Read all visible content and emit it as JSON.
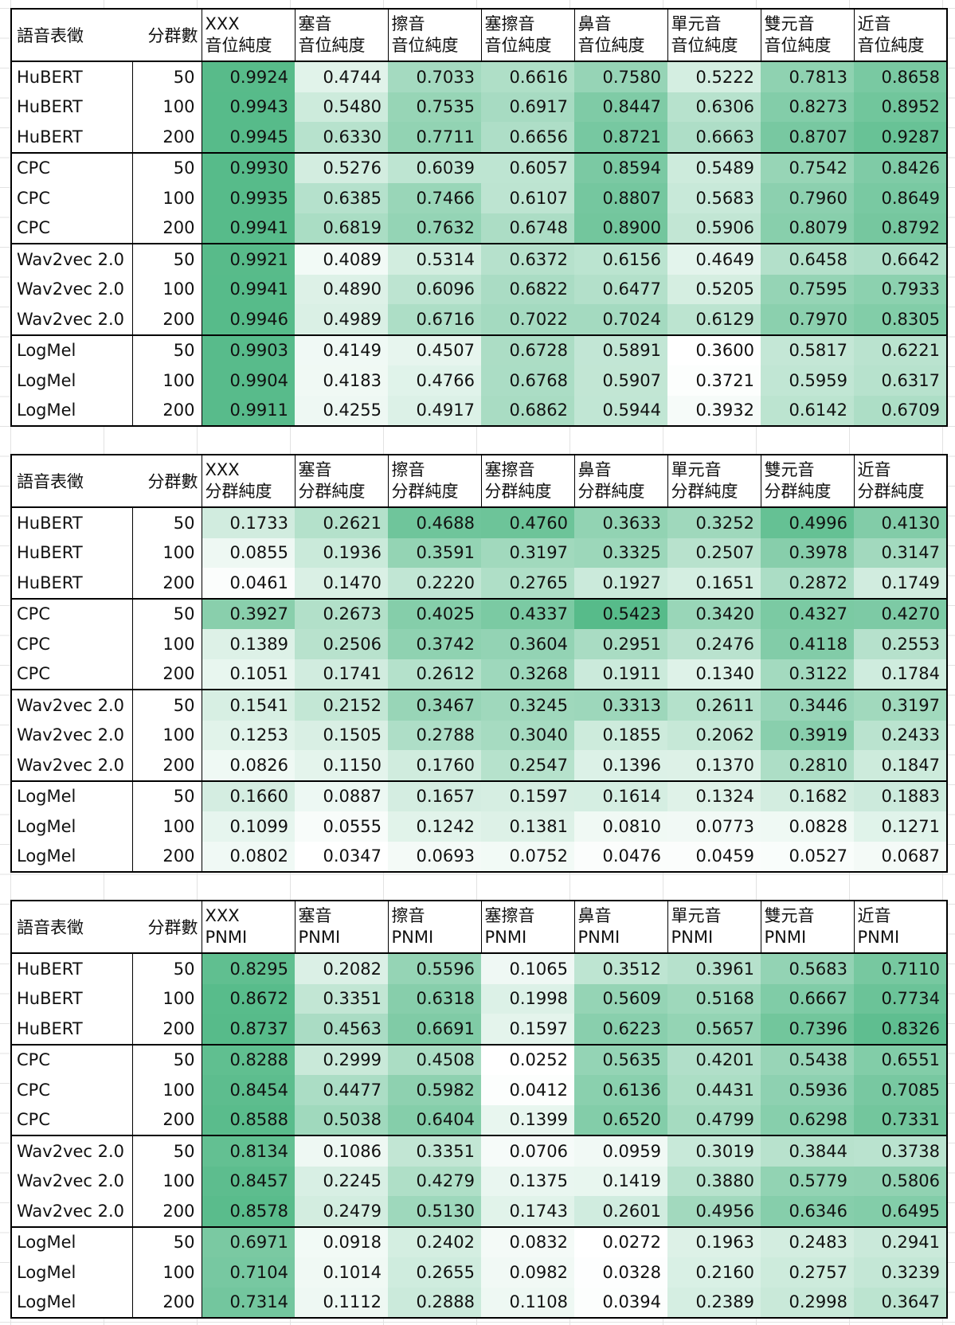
{
  "headers": {
    "representation": "語音表徵",
    "clusters": "分群數",
    "categories": [
      "XXX",
      "塞音",
      "擦音",
      "塞擦音",
      "鼻音",
      "單元音",
      "雙元音",
      "近音"
    ]
  },
  "tables": [
    {
      "metric": "音位純度",
      "rows": [
        {
          "name": "HuBERT",
          "k": "50",
          "values": [
            "0.9924",
            "0.4744",
            "0.7033",
            "0.6616",
            "0.7580",
            "0.5222",
            "0.7813",
            "0.8658"
          ]
        },
        {
          "name": "HuBERT",
          "k": "100",
          "values": [
            "0.9943",
            "0.5480",
            "0.7535",
            "0.6917",
            "0.8447",
            "0.6306",
            "0.8273",
            "0.8952"
          ]
        },
        {
          "name": "HuBERT",
          "k": "200",
          "values": [
            "0.9945",
            "0.6330",
            "0.7711",
            "0.6656",
            "0.8721",
            "0.6663",
            "0.8707",
            "0.9287"
          ]
        },
        {
          "name": "CPC",
          "k": "50",
          "values": [
            "0.9930",
            "0.5276",
            "0.6039",
            "0.6057",
            "0.8594",
            "0.5489",
            "0.7542",
            "0.8426"
          ]
        },
        {
          "name": "CPC",
          "k": "100",
          "values": [
            "0.9935",
            "0.6385",
            "0.7466",
            "0.6107",
            "0.8807",
            "0.5683",
            "0.7960",
            "0.8649"
          ]
        },
        {
          "name": "CPC",
          "k": "200",
          "values": [
            "0.9941",
            "0.6819",
            "0.7632",
            "0.6748",
            "0.8900",
            "0.5906",
            "0.8079",
            "0.8792"
          ]
        },
        {
          "name": "Wav2vec 2.0",
          "k": "50",
          "values": [
            "0.9921",
            "0.4089",
            "0.5314",
            "0.6372",
            "0.6156",
            "0.4649",
            "0.6458",
            "0.6642"
          ]
        },
        {
          "name": "Wav2vec 2.0",
          "k": "100",
          "values": [
            "0.9941",
            "0.4890",
            "0.6096",
            "0.6822",
            "0.6477",
            "0.5205",
            "0.7595",
            "0.7933"
          ]
        },
        {
          "name": "Wav2vec 2.0",
          "k": "200",
          "values": [
            "0.9946",
            "0.4989",
            "0.6716",
            "0.7022",
            "0.7024",
            "0.6129",
            "0.7970",
            "0.8305"
          ]
        },
        {
          "name": "LogMel",
          "k": "50",
          "values": [
            "0.9903",
            "0.4149",
            "0.4507",
            "0.6728",
            "0.5891",
            "0.3600",
            "0.5817",
            "0.6221"
          ]
        },
        {
          "name": "LogMel",
          "k": "100",
          "values": [
            "0.9904",
            "0.4183",
            "0.4766",
            "0.6768",
            "0.5907",
            "0.3721",
            "0.5959",
            "0.6317"
          ]
        },
        {
          "name": "LogMel",
          "k": "200",
          "values": [
            "0.9911",
            "0.4255",
            "0.4917",
            "0.6862",
            "0.5944",
            "0.3932",
            "0.6142",
            "0.6709"
          ]
        }
      ]
    },
    {
      "metric": "分群純度",
      "rows": [
        {
          "name": "HuBERT",
          "k": "50",
          "values": [
            "0.1733",
            "0.2621",
            "0.4688",
            "0.4760",
            "0.3633",
            "0.3252",
            "0.4996",
            "0.4130"
          ]
        },
        {
          "name": "HuBERT",
          "k": "100",
          "values": [
            "0.0855",
            "0.1936",
            "0.3591",
            "0.3197",
            "0.3325",
            "0.2507",
            "0.3978",
            "0.3147"
          ]
        },
        {
          "name": "HuBERT",
          "k": "200",
          "values": [
            "0.0461",
            "0.1470",
            "0.2220",
            "0.2765",
            "0.1927",
            "0.1651",
            "0.2872",
            "0.1749"
          ]
        },
        {
          "name": "CPC",
          "k": "50",
          "values": [
            "0.3927",
            "0.2673",
            "0.4025",
            "0.4337",
            "0.5423",
            "0.3420",
            "0.4327",
            "0.4270"
          ]
        },
        {
          "name": "CPC",
          "k": "100",
          "values": [
            "0.1389",
            "0.2506",
            "0.3742",
            "0.3604",
            "0.2951",
            "0.2476",
            "0.4118",
            "0.2553"
          ]
        },
        {
          "name": "CPC",
          "k": "200",
          "values": [
            "0.1051",
            "0.1741",
            "0.2612",
            "0.3268",
            "0.1911",
            "0.1340",
            "0.3122",
            "0.1784"
          ]
        },
        {
          "name": "Wav2vec 2.0",
          "k": "50",
          "values": [
            "0.1541",
            "0.2152",
            "0.3467",
            "0.3245",
            "0.3313",
            "0.2611",
            "0.3446",
            "0.3197"
          ]
        },
        {
          "name": "Wav2vec 2.0",
          "k": "100",
          "values": [
            "0.1253",
            "0.1505",
            "0.2788",
            "0.3040",
            "0.1855",
            "0.2062",
            "0.3919",
            "0.2433"
          ]
        },
        {
          "name": "Wav2vec 2.0",
          "k": "200",
          "values": [
            "0.0826",
            "0.1150",
            "0.1760",
            "0.2547",
            "0.1396",
            "0.1370",
            "0.2810",
            "0.1847"
          ]
        },
        {
          "name": "LogMel",
          "k": "50",
          "values": [
            "0.1660",
            "0.0887",
            "0.1657",
            "0.1597",
            "0.1614",
            "0.1324",
            "0.1682",
            "0.1883"
          ]
        },
        {
          "name": "LogMel",
          "k": "100",
          "values": [
            "0.1099",
            "0.0555",
            "0.1242",
            "0.1381",
            "0.0810",
            "0.0773",
            "0.0828",
            "0.1271"
          ]
        },
        {
          "name": "LogMel",
          "k": "200",
          "values": [
            "0.0802",
            "0.0347",
            "0.0693",
            "0.0752",
            "0.0476",
            "0.0459",
            "0.0527",
            "0.0687"
          ]
        }
      ]
    },
    {
      "metric": "PNMI",
      "rows": [
        {
          "name": "HuBERT",
          "k": "50",
          "values": [
            "0.8295",
            "0.2082",
            "0.5596",
            "0.1065",
            "0.3512",
            "0.3961",
            "0.5683",
            "0.7110"
          ]
        },
        {
          "name": "HuBERT",
          "k": "100",
          "values": [
            "0.8672",
            "0.3351",
            "0.6318",
            "0.1998",
            "0.5609",
            "0.5168",
            "0.6667",
            "0.7734"
          ]
        },
        {
          "name": "HuBERT",
          "k": "200",
          "values": [
            "0.8737",
            "0.4563",
            "0.6691",
            "0.1597",
            "0.6223",
            "0.5657",
            "0.7396",
            "0.8326"
          ]
        },
        {
          "name": "CPC",
          "k": "50",
          "values": [
            "0.8288",
            "0.2999",
            "0.4508",
            "0.0252",
            "0.5635",
            "0.4201",
            "0.5438",
            "0.6551"
          ]
        },
        {
          "name": "CPC",
          "k": "100",
          "values": [
            "0.8454",
            "0.4477",
            "0.5982",
            "0.0412",
            "0.6136",
            "0.4431",
            "0.5936",
            "0.7085"
          ]
        },
        {
          "name": "CPC",
          "k": "200",
          "values": [
            "0.8588",
            "0.5038",
            "0.6404",
            "0.1399",
            "0.6520",
            "0.4799",
            "0.6298",
            "0.7331"
          ]
        },
        {
          "name": "Wav2vec 2.0",
          "k": "50",
          "values": [
            "0.8134",
            "0.1086",
            "0.3351",
            "0.0706",
            "0.0959",
            "0.3019",
            "0.3844",
            "0.3738"
          ]
        },
        {
          "name": "Wav2vec 2.0",
          "k": "100",
          "values": [
            "0.8457",
            "0.2245",
            "0.4279",
            "0.1375",
            "0.1419",
            "0.3880",
            "0.5779",
            "0.5806"
          ]
        },
        {
          "name": "Wav2vec 2.0",
          "k": "200",
          "values": [
            "0.8578",
            "0.2479",
            "0.5130",
            "0.1743",
            "0.2601",
            "0.4956",
            "0.6346",
            "0.6495"
          ]
        },
        {
          "name": "LogMel",
          "k": "50",
          "values": [
            "0.6971",
            "0.0918",
            "0.2402",
            "0.0832",
            "0.0272",
            "0.1963",
            "0.2483",
            "0.2941"
          ]
        },
        {
          "name": "LogMel",
          "k": "100",
          "values": [
            "0.7104",
            "0.1014",
            "0.2655",
            "0.0982",
            "0.0328",
            "0.2160",
            "0.2757",
            "0.3239"
          ]
        },
        {
          "name": "LogMel",
          "k": "200",
          "values": [
            "0.7314",
            "0.1112",
            "0.2888",
            "0.1108",
            "0.0394",
            "0.2389",
            "0.2998",
            "0.3647"
          ]
        }
      ]
    }
  ],
  "colors": {
    "scale_low": "#ffffff",
    "scale_high": "#57bb8a",
    "grid": "#e2e2e2",
    "border": "#000000"
  }
}
